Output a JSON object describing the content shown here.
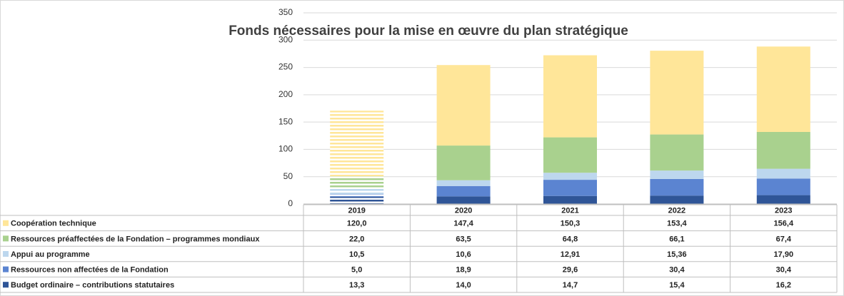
{
  "chart_data": {
    "type": "stacked_bar",
    "title": "Fonds nécessaires pour la mise en œuvre du plan stratégique",
    "categories": [
      "2019",
      "2020",
      "2021",
      "2022",
      "2023"
    ],
    "series": [
      {
        "name": "Coopération technique",
        "color": "#ffe699",
        "values": [
          120,
          147.4,
          150.3,
          153.4,
          156.4
        ],
        "value_labels": [
          "120,0",
          "147,4",
          "150,3",
          "153,4",
          "156,4"
        ]
      },
      {
        "name": "Ressources préaffectées de la Fondation – programmes mondiaux",
        "color": "#a9d18e",
        "values": [
          22,
          63.5,
          64.8,
          66.1,
          67.4
        ],
        "value_labels": [
          "22,0",
          "63,5",
          "64,8",
          "66,1",
          "67,4"
        ]
      },
      {
        "name": "Appui au programme",
        "color": "#bdd7ee",
        "values": [
          10.5,
          10.6,
          12.91,
          15.36,
          17.9
        ],
        "value_labels": [
          "10,5",
          "10,6",
          "12,91",
          "15,36",
          "17,90"
        ]
      },
      {
        "name": "Ressources non affectées de la Fondation",
        "color": "#5b84d1",
        "values": [
          5,
          18.9,
          29.6,
          30.4,
          30.4
        ],
        "value_labels": [
          "5,0",
          "18,9",
          "29,6",
          "30,4",
          "30,4"
        ]
      },
      {
        "name": "Budget ordinaire – contributions statutaires",
        "color": "#2f5597",
        "values": [
          13.3,
          14,
          14.7,
          15.4,
          16.2
        ],
        "value_labels": [
          "13,3",
          "14,0",
          "14,7",
          "15,4",
          "16,2"
        ]
      }
    ],
    "ylim": [
      0,
      350
    ],
    "yticks": [
      0,
      50,
      100,
      150,
      200,
      250,
      300,
      350
    ],
    "grid": true
  }
}
